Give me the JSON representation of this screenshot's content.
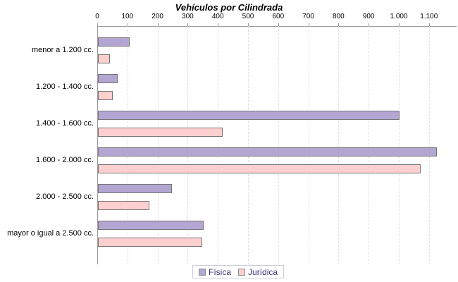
{
  "chart_data": {
    "type": "bar",
    "orientation": "horizontal",
    "title": "Vehículos por Cilindrada",
    "categories": [
      "menor a 1.200 cc.",
      "1.200 - 1.400 cc.",
      "1.400 - 1.600 cc.",
      "1.600 - 2.000 cc.",
      "2.000 - 2.500 cc.",
      "mayor o igual a 2.500 cc."
    ],
    "series": [
      {
        "name": "Física",
        "color": "#b3a6d3",
        "values": [
          100,
          60,
          995,
          1120,
          240,
          345
        ]
      },
      {
        "name": "Jurídica",
        "color": "#fdcfcf",
        "values": [
          35,
          45,
          410,
          1065,
          165,
          340
        ]
      }
    ],
    "x_axis": {
      "tick_labels": [
        "0",
        "100",
        "200",
        "300",
        "400",
        "500",
        "600",
        "700",
        "800",
        "900",
        "1.000",
        "1.100"
      ],
      "tick_interval": 100,
      "range": [
        0,
        1190
      ],
      "position": "top",
      "grid": "dashed"
    },
    "legend_position": "bottom-center",
    "colors": {
      "bar_border": "#757575",
      "axis": "#9b9b9b",
      "grid": "#e0e0e0",
      "legend_text": "#3d3478",
      "legend_border": "#ccccdc",
      "background": "#ffffff"
    }
  }
}
